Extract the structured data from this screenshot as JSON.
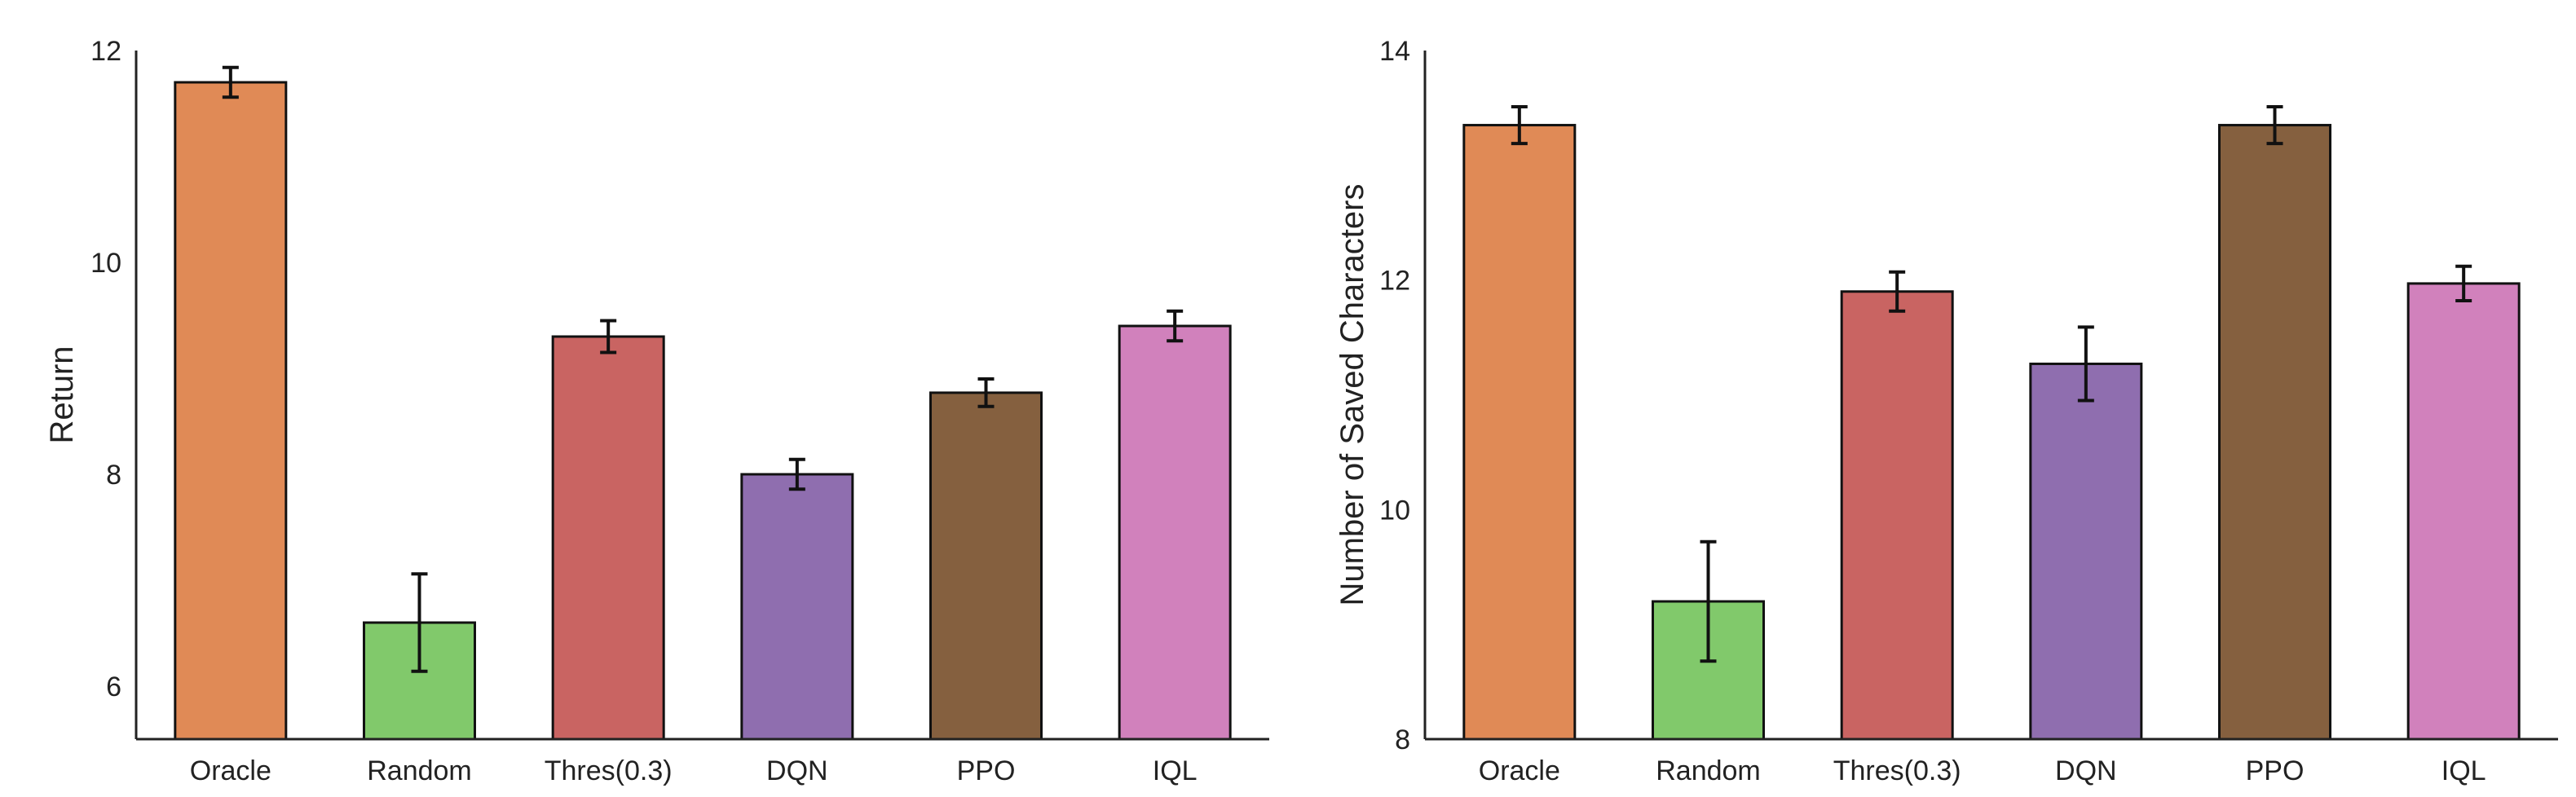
{
  "chart_data": [
    {
      "type": "bar",
      "title": "",
      "xlabel": "",
      "ylabel": "Return",
      "categories": [
        "Oracle",
        "Random",
        "Thres(0.3)",
        "DQN",
        "PPO",
        "IQL"
      ],
      "values": [
        11.7,
        6.6,
        9.3,
        8.0,
        8.77,
        9.4
      ],
      "errors": [
        0.14,
        0.46,
        0.15,
        0.14,
        0.13,
        0.14
      ],
      "colors": [
        "#E08A56",
        "#81C96B",
        "#C96462",
        "#8F6EAF",
        "#85603F",
        "#D181BC"
      ],
      "ylim": [
        5.5,
        12
      ],
      "yticks": [
        6,
        8,
        10,
        12
      ],
      "ytick_labels": [
        "6",
        "8",
        "10",
        "12"
      ],
      "grid": false
    },
    {
      "type": "bar",
      "title": "",
      "xlabel": "",
      "ylabel": "Number of Saved Characters",
      "categories": [
        "Oracle",
        "Random",
        "Thres(0.3)",
        "DQN",
        "PPO",
        "IQL"
      ],
      "values": [
        13.35,
        9.2,
        11.9,
        11.27,
        13.35,
        11.97
      ],
      "errors": [
        0.16,
        0.52,
        0.17,
        0.32,
        0.16,
        0.15
      ],
      "colors": [
        "#E08A56",
        "#81C96B",
        "#C96462",
        "#8F6EAF",
        "#85603F",
        "#D181BC"
      ],
      "ylim": [
        8,
        14
      ],
      "yticks": [
        8,
        10,
        12,
        14
      ],
      "ytick_labels": [
        "8",
        "10",
        "12",
        "14"
      ],
      "grid": false
    }
  ]
}
